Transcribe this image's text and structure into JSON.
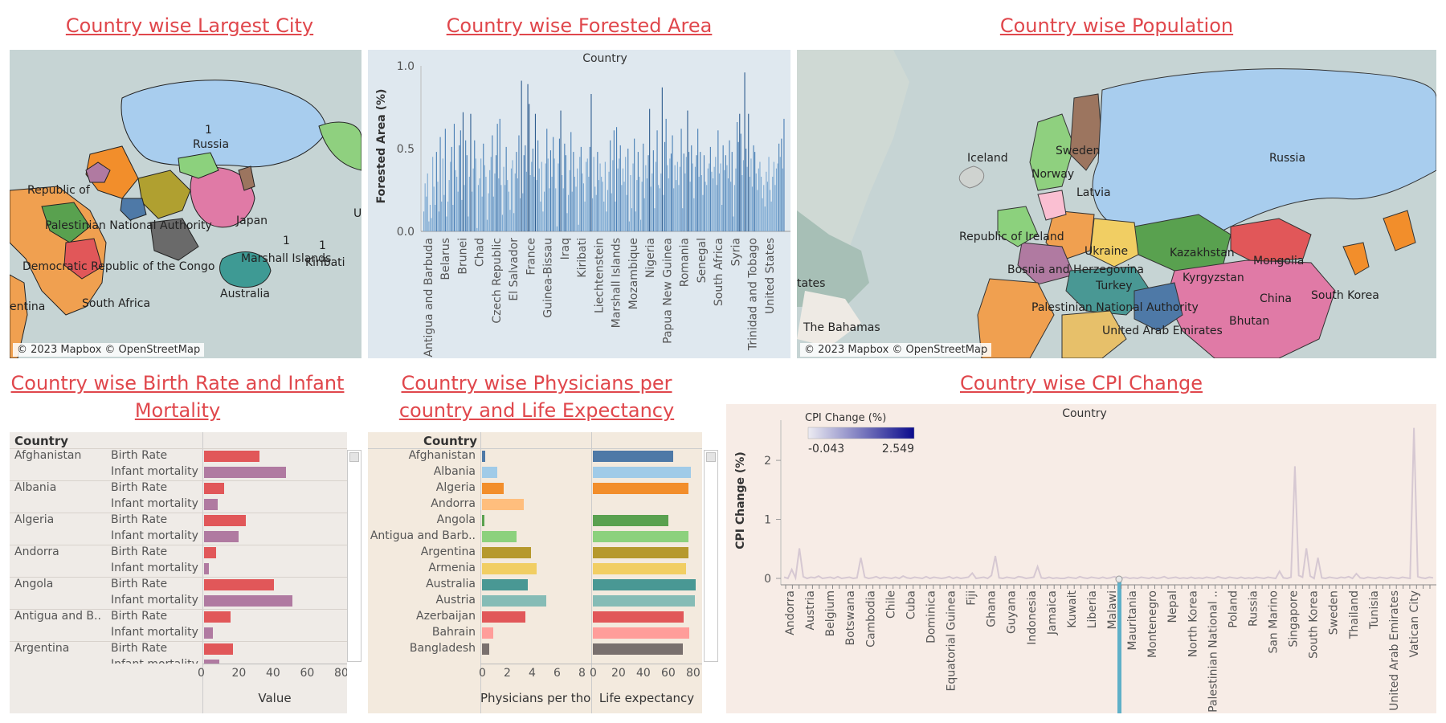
{
  "titles": {
    "largest_city": "Country wise Largest City",
    "forested_area": "Country wise Forested Area",
    "population": "Country wise Population",
    "birth_infant": "Country wise Birth Rate and Infant Mortality",
    "physicians": "Country wise Physicians per country and Life Expectancy",
    "cpi": "Country wise CPI Change"
  },
  "map_credit": "© 2023 Mapbox © OpenStreetMap",
  "map_largest_city": {
    "labels": [
      "1",
      "Russia",
      "Republic of",
      "Palestinian National Authority",
      "Japan",
      "U",
      "1",
      "1",
      "Marshall Islands",
      "Kiribati",
      "Democratic Republic of the Congo",
      "Australia",
      "South Africa",
      "entina"
    ]
  },
  "map_population": {
    "labels": [
      "Iceland",
      "Sweden",
      "Norway",
      "Russia",
      "Latvia",
      "Republic of Ireland",
      "Ukraine",
      "Kazakhstan",
      "Mongolia",
      "Bosnia and Herzegovina",
      "Kyrgyzstan",
      "tates",
      "Turkey",
      "China",
      "South Korea",
      "Palestinian National Authority",
      "Bhutan",
      "United Arab Emirates",
      "The Bahamas"
    ]
  },
  "chart_data": [
    {
      "type": "bar",
      "title": "Country",
      "ylabel": "Forested Area (%)",
      "ylim": [
        0,
        1.0
      ],
      "yticks": [
        "0.0",
        "0.5",
        "1.0"
      ],
      "tick_labels": [
        "Antigua and Barbuda",
        "Belarus",
        "Brunei",
        "Chad",
        "Czech Republic",
        "El Salvador",
        "France",
        "Guinea-Bissau",
        "Iraq",
        "Kiribati",
        "Liechtenstein",
        "Marshall Islands",
        "Mozambique",
        "Nigeria",
        "Papua New Guinea",
        "Romania",
        "Senegal",
        "South Africa",
        "Syria",
        "Trinidad and Tobago",
        "United States"
      ],
      "values": [
        0.12,
        0.29,
        0.21,
        0.35,
        0.06,
        0.16,
        0.08,
        0.45,
        0.27,
        0.16,
        0.48,
        0.3,
        0.12,
        0.57,
        0.18,
        0.44,
        0.22,
        0.62,
        0.09,
        0.18,
        0.31,
        0.42,
        0.51,
        0.16,
        0.65,
        0.37,
        0.33,
        0.24,
        0.52,
        0.61,
        0.19,
        0.72,
        0.28,
        0.55,
        0.46,
        0.09,
        0.33,
        0.71,
        0.24,
        0.38,
        0.55,
        0.44,
        0.02,
        0.28,
        0.32,
        0.44,
        0.21,
        0.53,
        0.4,
        0.33,
        0.07,
        0.23,
        0.37,
        0.45,
        0.58,
        0.21,
        0.35,
        0.46,
        0.65,
        0.32,
        0.68,
        0.28,
        0.1,
        0.39,
        0.28,
        0.51,
        0.31,
        0.24,
        0.13,
        0.38,
        0.43,
        0.11,
        0.35,
        0.48,
        0.32,
        0.58,
        0.2,
        0.91,
        0.23,
        0.46,
        0.52,
        0.36,
        0.89,
        0.77,
        0.34,
        0.42,
        0.5,
        0.33,
        0.71,
        0.31,
        0.55,
        0.38,
        0.18,
        0.42,
        0.12,
        0.24,
        0.41,
        0.62,
        0.44,
        0.26,
        0.49,
        0.33,
        0.57,
        0.44,
        0.26,
        0.03,
        0.41,
        0.56,
        0.73,
        0.34,
        0.26,
        0.53,
        0.46,
        0.11,
        0.22,
        0.37,
        0.6,
        0.24,
        0.48,
        0.33,
        0.27,
        0.38,
        0.04,
        0.45,
        0.51,
        0.35,
        0.29,
        0.18,
        0.42,
        0.44,
        0.33,
        0.51,
        0.83,
        0.2,
        0.45,
        0.27,
        0.22,
        0.48,
        0.31,
        0.41,
        0.33,
        0.3,
        0.18,
        0.42,
        0.12,
        0.25,
        0.36,
        0.55,
        0.23,
        0.43,
        0.61,
        0.18,
        0.63,
        0.38,
        0.44,
        0.52,
        0.28,
        0.38,
        0.3,
        0.45,
        0.22,
        0.5,
        0.06,
        0.34,
        0.14,
        0.41,
        0.56,
        0.12,
        0.31,
        0.48,
        0.33,
        0.07,
        0.3,
        0.53,
        0.2,
        0.4,
        0.32,
        0.46,
        0.74,
        0.27,
        0.35,
        0.49,
        0.14,
        0.42,
        0.61,
        0.28,
        0.26,
        0.35,
        0.87,
        0.22,
        0.54,
        0.68,
        0.4,
        0.32,
        0.44,
        0.47,
        0.58,
        0.26,
        0.4,
        0.31,
        0.42,
        0.28,
        0.39,
        0.62,
        0.14,
        0.47,
        0.35,
        0.45,
        0.73,
        0.48,
        0.3,
        0.52,
        0.41,
        0.2,
        0.39,
        0.46,
        0.62,
        0.33,
        0.48,
        0.34,
        0.22,
        0.46,
        0.3,
        0.28,
        0.38,
        0.41,
        0.51,
        0.36,
        0.32,
        0.39,
        0.45,
        0.28,
        0.61,
        0.35,
        0.41,
        0.16,
        0.52,
        0.37,
        0.46,
        0.4,
        0.32,
        0.55,
        0.3,
        0.48,
        0.09,
        0.28,
        0.38,
        0.66,
        0.54,
        0.71,
        0.59,
        0.34,
        0.43,
        0.96,
        0.5,
        0.39,
        0.71,
        0.33,
        0.44,
        0.27,
        0.52,
        0.48,
        0.35,
        0.25,
        0.38,
        0.42,
        0.33,
        0.2,
        0.28,
        0.15,
        0.36,
        0.3,
        0.45,
        0.25,
        0.18,
        0.33,
        0.42,
        0.28,
        0.38,
        0.41,
        0.53,
        0.45,
        0.56,
        0.38,
        0.68
      ]
    },
    {
      "type": "bar",
      "title": "Country",
      "column_header": "Country",
      "xlabel": "Value",
      "xticks": [
        "0",
        "20",
        "40",
        "60",
        "80"
      ],
      "xlim": [
        0,
        80
      ],
      "legend": [
        "Birth Rate",
        "Infant mortality"
      ],
      "rows": [
        {
          "country": "Afghanistan",
          "measure": "Birth Rate",
          "value": 32.5
        },
        {
          "country": "",
          "measure": "Infant mortality",
          "value": 47.9
        },
        {
          "country": "Albania",
          "measure": "Birth Rate",
          "value": 11.8
        },
        {
          "country": "",
          "measure": "Infant mortality",
          "value": 7.8
        },
        {
          "country": "Algeria",
          "measure": "Birth Rate",
          "value": 24.3
        },
        {
          "country": "",
          "measure": "Infant mortality",
          "value": 20.1
        },
        {
          "country": "Andorra",
          "measure": "Birth Rate",
          "value": 7.2
        },
        {
          "country": "",
          "measure": "Infant mortality",
          "value": 2.7
        },
        {
          "country": "Angola",
          "measure": "Birth Rate",
          "value": 40.7
        },
        {
          "country": "",
          "measure": "Infant mortality",
          "value": 51.6
        },
        {
          "country": "Antigua and B..",
          "measure": "Birth Rate",
          "value": 15.3
        },
        {
          "country": "",
          "measure": "Infant mortality",
          "value": 5.0
        },
        {
          "country": "Argentina",
          "measure": "Birth Rate",
          "value": 17.0
        },
        {
          "country": "",
          "measure": "Infant mortality",
          "value": 8.8
        }
      ]
    },
    {
      "type": "bar",
      "title": "Country",
      "column_header": "Country",
      "xlabels": [
        "Physicians per tho..",
        "Life expectancy"
      ],
      "xticks_physicians": [
        "0",
        "2",
        "4",
        "6",
        "8"
      ],
      "xlim_physicians": [
        0,
        8
      ],
      "xticks_life": [
        "0",
        "20",
        "40",
        "60",
        "80"
      ],
      "xlim_life": [
        0,
        80
      ],
      "categories": [
        "Afghanistan",
        "Albania",
        "Algeria",
        "Andorra",
        "Angola",
        "Antigua and Barb..",
        "Argentina",
        "Armenia",
        "Australia",
        "Austria",
        "Azerbaijan",
        "Bahrain",
        "Bangladesh"
      ],
      "physicians": [
        0.28,
        1.2,
        1.72,
        3.33,
        0.21,
        2.76,
        3.96,
        4.4,
        3.68,
        5.17,
        3.45,
        0.93,
        0.58
      ],
      "life_expectancy": [
        64.5,
        78.5,
        76.7,
        0,
        60.8,
        76.9,
        76.5,
        74.9,
        82.7,
        81.6,
        72.9,
        77.2,
        72.3
      ],
      "colors": [
        "#4e79a7",
        "#a0cbe8",
        "#f28e2b",
        "#ffbe7d",
        "#59a14f",
        "#8cd17d",
        "#b6992d",
        "#f1ce63",
        "#499894",
        "#86bcb6",
        "#e15759",
        "#ff9d9a",
        "#79706e"
      ]
    },
    {
      "type": "line",
      "title": "Country",
      "ylabel": "CPI Change (%)",
      "yticks": [
        "0",
        "1",
        "2"
      ],
      "ylim": [
        -0.1,
        2.6
      ],
      "legend_title": "CPI Change (%)",
      "legend_min": "-0.043",
      "legend_max": "2.549",
      "highlight_label": "Malawi",
      "tick_labels": [
        "Andorra",
        "Austria",
        "Belgium",
        "Botswana",
        "Cambodia",
        "Chile",
        "Cuba",
        "Dominica",
        "Equatorial Guinea",
        "Fiji",
        "Ghana",
        "Guyana",
        "Indonesia",
        "Jamaica",
        "Kuwait",
        "Liberia",
        "Malawi",
        "Mauritania",
        "Montenegro",
        "Nepal",
        "North Korea",
        "Palestinian National ..",
        "Poland",
        "Russia",
        "San Marino",
        "Singapore",
        "South Korea",
        "Sweden",
        "Thailand",
        "Tunisia",
        "United Arab Emirates",
        "Vatican City"
      ],
      "values": [
        0.02,
        0.0,
        0.15,
        0.01,
        0.51,
        0.03,
        0.0,
        0.02,
        0.01,
        0.04,
        0.0,
        0.01,
        0.02,
        0.0,
        0.03,
        0.0,
        0.01,
        0.02,
        0.0,
        0.01,
        0.35,
        0.02,
        0.0,
        0.01,
        0.03,
        0.0,
        0.02,
        0.01,
        0.0,
        0.02,
        0.0,
        0.04,
        0.01,
        0.0,
        0.02,
        0.01,
        0.0,
        0.03,
        0.0,
        0.02,
        0.01,
        0.0,
        0.01,
        0.03,
        0.0,
        0.02,
        0.0,
        0.01,
        0.02,
        0.09,
        0.0,
        0.01,
        0.02,
        0.0,
        0.05,
        0.38,
        0.01,
        0.0,
        0.02,
        0.01,
        0.0,
        0.03,
        0.02,
        0.0,
        0.01,
        0.02,
        0.2,
        0.01,
        0.0,
        0.02,
        0.0,
        0.01,
        0.0,
        0.0,
        0.02,
        0.01,
        0.0,
        0.03,
        0.01,
        0.0,
        0.02,
        0.01,
        0.0,
        0.02,
        0.0,
        0.01,
        0.03,
        0.0,
        0.01,
        0.02,
        0.0,
        0.01,
        0.0,
        0.02,
        0.01,
        0.0,
        0.02,
        0.0,
        0.01,
        0.03,
        0.0,
        0.01,
        0.02,
        0.0,
        0.01,
        0.0,
        0.02,
        0.0,
        0.01,
        0.0,
        0.02,
        0.01,
        0.0,
        0.03,
        0.01,
        0.0,
        0.02,
        0.01,
        0.0,
        0.02,
        0.0,
        0.01,
        0.0,
        0.02,
        0.01,
        0.0,
        0.02,
        0.01,
        0.0,
        0.12,
        0.01,
        0.0,
        0.02,
        1.9,
        0.05,
        0.02,
        0.51,
        0.04,
        0.0,
        0.35,
        0.01,
        0.0,
        0.02,
        0.01,
        0.0,
        0.02,
        0.01,
        0.03,
        0.0,
        0.08,
        0.01,
        0.0,
        0.02,
        0.01,
        0.0,
        0.02,
        0.01,
        0.0,
        0.02,
        0.01,
        0.0,
        0.02,
        0.01,
        0.0,
        2.55,
        0.03,
        0.01,
        0.0,
        0.02,
        0.01
      ]
    }
  ],
  "colors": {
    "title": "#e0474c",
    "map_water": "#c6d4d4",
    "forest_bg": "#dfe8ef",
    "forest_bar": "#4a7fb5",
    "table_bg": "#efebe7",
    "physicians_bg": "#f3eade",
    "cpi_bg": "#f7ece6",
    "birth_rate": "#e15759",
    "infant_mortality": "#b07aa1",
    "highlight": "#5fb0c8"
  }
}
